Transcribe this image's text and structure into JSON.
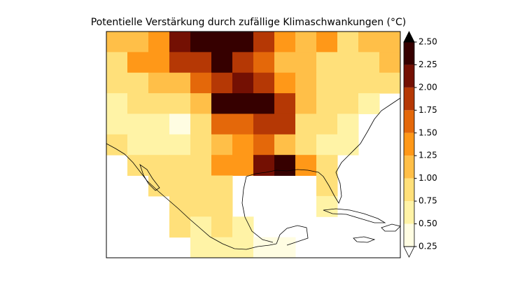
{
  "chart_data": {
    "type": "heatmap",
    "title": "Potentielle Verstärkung durch zufällige Klimaschwankungen (°C)",
    "values": [
      [
        1.1,
        1.2,
        1.4,
        2.1,
        2.5,
        2.3,
        2.5,
        2.0,
        1.4,
        1.2,
        1.3,
        1.0,
        1.2,
        1.1
      ],
      [
        1.0,
        1.3,
        1.5,
        1.8,
        2.0,
        2.3,
        1.8,
        1.7,
        1.2,
        1.1,
        1.0,
        0.9,
        0.9,
        1.1
      ],
      [
        0.9,
        1.0,
        1.1,
        1.2,
        1.6,
        2.0,
        2.1,
        1.9,
        1.5,
        1.1,
        1.0,
        0.9,
        0.8,
        0.8
      ],
      [
        0.7,
        0.8,
        0.8,
        0.9,
        1.2,
        2.4,
        2.5,
        2.3,
        2.0,
        1.1,
        0.9,
        0.8,
        0.7,
        null
      ],
      [
        0.7,
        0.7,
        0.6,
        0.5,
        0.9,
        1.6,
        1.7,
        2.0,
        1.8,
        1.0,
        0.8,
        0.7,
        null,
        null
      ],
      [
        0.9,
        0.7,
        0.6,
        0.7,
        0.8,
        1.2,
        1.5,
        1.6,
        1.1,
        0.9,
        0.6,
        0.6,
        null,
        null
      ],
      [
        null,
        1.0,
        0.9,
        0.8,
        0.8,
        1.3,
        1.4,
        2.2,
        2.4,
        1.3,
        0.9,
        null,
        null,
        null
      ],
      [
        null,
        null,
        0.8,
        0.9,
        0.9,
        1.0,
        null,
        null,
        null,
        null,
        0.8,
        null,
        null,
        null
      ],
      [
        null,
        null,
        null,
        0.9,
        1.0,
        0.9,
        null,
        null,
        null,
        null,
        0.6,
        null,
        null,
        null
      ],
      [
        null,
        null,
        null,
        0.8,
        0.7,
        0.8,
        0.7,
        null,
        null,
        null,
        null,
        null,
        null,
        null
      ],
      [
        null,
        null,
        null,
        null,
        0.6,
        0.7,
        0.6,
        0.5,
        0.5,
        null,
        null,
        null,
        null,
        null
      ]
    ],
    "levels": [
      0.25,
      {
        "value": 0.5,
        "label": "0.50"
      },
      0.75,
      {
        "value": 1.0,
        "label": "1.00"
      },
      1.25,
      {
        "value": 1.5,
        "label": "1.50"
      },
      1.75,
      {
        "value": 2.0,
        "label": "2.00"
      },
      2.25,
      {
        "value": 2.5,
        "label": "2.50"
      }
    ],
    "colors": [
      "#fffde2",
      "#fff3a6",
      "#ffe07a",
      "#ffbf48",
      "#ff9818",
      "#e4680a",
      "#b53805",
      "#741003",
      "#360000"
    ],
    "under_color": "#ffffff",
    "over_color": "#000000"
  }
}
